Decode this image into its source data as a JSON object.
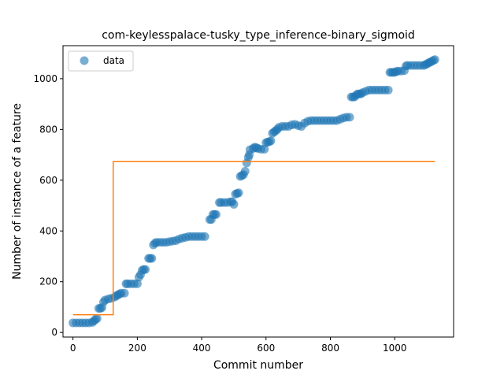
{
  "chart_data": {
    "type": "scatter",
    "title": "com-keylesspalace-tusky_type_inference-binary_sigmoid",
    "xlabel": "Commit number",
    "ylabel": "Number of instance of a feature",
    "xlim": [
      -31,
      1183
    ],
    "ylim": [
      -18,
      1130
    ],
    "xticks": [
      0,
      200,
      400,
      600,
      800,
      1000
    ],
    "yticks": [
      0,
      200,
      400,
      600,
      800,
      1000
    ],
    "legend": {
      "placement": "top-left",
      "entries": [
        "data"
      ]
    },
    "colors": {
      "data": "#1f77b4",
      "fit": "#ff7f0e"
    },
    "series": [
      {
        "name": "data",
        "style": "markers",
        "points": [
          [
            0,
            38
          ],
          [
            10,
            38
          ],
          [
            20,
            38
          ],
          [
            30,
            38
          ],
          [
            40,
            38
          ],
          [
            50,
            38
          ],
          [
            60,
            40
          ],
          [
            65,
            45
          ],
          [
            70,
            52
          ],
          [
            75,
            55
          ],
          [
            80,
            95
          ],
          [
            85,
            95
          ],
          [
            90,
            98
          ],
          [
            95,
            120
          ],
          [
            100,
            128
          ],
          [
            110,
            132
          ],
          [
            120,
            135
          ],
          [
            130,
            140
          ],
          [
            135,
            145
          ],
          [
            140,
            148
          ],
          [
            145,
            152
          ],
          [
            150,
            155
          ],
          [
            160,
            155
          ],
          [
            165,
            192
          ],
          [
            170,
            192
          ],
          [
            180,
            192
          ],
          [
            190,
            192
          ],
          [
            200,
            192
          ],
          [
            205,
            218
          ],
          [
            210,
            228
          ],
          [
            215,
            245
          ],
          [
            220,
            248
          ],
          [
            225,
            248
          ],
          [
            235,
            292
          ],
          [
            240,
            292
          ],
          [
            245,
            292
          ],
          [
            250,
            345
          ],
          [
            255,
            352
          ],
          [
            260,
            355
          ],
          [
            270,
            355
          ],
          [
            280,
            355
          ],
          [
            290,
            355
          ],
          [
            300,
            358
          ],
          [
            310,
            360
          ],
          [
            320,
            362
          ],
          [
            330,
            368
          ],
          [
            340,
            372
          ],
          [
            350,
            375
          ],
          [
            360,
            378
          ],
          [
            370,
            378
          ],
          [
            380,
            378
          ],
          [
            390,
            378
          ],
          [
            400,
            378
          ],
          [
            410,
            378
          ],
          [
            425,
            445
          ],
          [
            430,
            445
          ],
          [
            435,
            465
          ],
          [
            440,
            465
          ],
          [
            445,
            465
          ],
          [
            455,
            512
          ],
          [
            460,
            512
          ],
          [
            470,
            512
          ],
          [
            480,
            512
          ],
          [
            490,
            515
          ],
          [
            495,
            515
          ],
          [
            500,
            505
          ],
          [
            505,
            545
          ],
          [
            510,
            548
          ],
          [
            515,
            550
          ],
          [
            520,
            615
          ],
          [
            525,
            618
          ],
          [
            530,
            622
          ],
          [
            535,
            635
          ],
          [
            540,
            668
          ],
          [
            545,
            690
          ],
          [
            548,
            700
          ],
          [
            550,
            720
          ],
          [
            560,
            725
          ],
          [
            565,
            730
          ],
          [
            570,
            728
          ],
          [
            575,
            725
          ],
          [
            585,
            722
          ],
          [
            595,
            722
          ],
          [
            600,
            748
          ],
          [
            605,
            750
          ],
          [
            610,
            752
          ],
          [
            615,
            755
          ],
          [
            620,
            785
          ],
          [
            625,
            790
          ],
          [
            630,
            795
          ],
          [
            635,
            800
          ],
          [
            640,
            808
          ],
          [
            650,
            812
          ],
          [
            660,
            812
          ],
          [
            670,
            812
          ],
          [
            680,
            818
          ],
          [
            690,
            820
          ],
          [
            700,
            815
          ],
          [
            710,
            812
          ],
          [
            720,
            825
          ],
          [
            730,
            832
          ],
          [
            740,
            835
          ],
          [
            750,
            835
          ],
          [
            760,
            835
          ],
          [
            770,
            835
          ],
          [
            780,
            835
          ],
          [
            790,
            835
          ],
          [
            800,
            835
          ],
          [
            810,
            835
          ],
          [
            820,
            835
          ],
          [
            830,
            840
          ],
          [
            840,
            845
          ],
          [
            850,
            848
          ],
          [
            860,
            848
          ],
          [
            865,
            928
          ],
          [
            870,
            928
          ],
          [
            875,
            928
          ],
          [
            880,
            935
          ],
          [
            885,
            940
          ],
          [
            890,
            940
          ],
          [
            895,
            940
          ],
          [
            900,
            945
          ],
          [
            910,
            950
          ],
          [
            920,
            955
          ],
          [
            930,
            955
          ],
          [
            940,
            955
          ],
          [
            950,
            955
          ],
          [
            960,
            955
          ],
          [
            970,
            955
          ],
          [
            980,
            955
          ],
          [
            985,
            1025
          ],
          [
            990,
            1025
          ],
          [
            995,
            1025
          ],
          [
            1000,
            1025
          ],
          [
            1005,
            1028
          ],
          [
            1010,
            1030
          ],
          [
            1020,
            1030
          ],
          [
            1030,
            1032
          ],
          [
            1035,
            1050
          ],
          [
            1040,
            1052
          ],
          [
            1050,
            1052
          ],
          [
            1060,
            1052
          ],
          [
            1070,
            1052
          ],
          [
            1080,
            1052
          ],
          [
            1090,
            1052
          ],
          [
            1095,
            1055
          ],
          [
            1100,
            1058
          ],
          [
            1105,
            1062
          ],
          [
            1110,
            1065
          ],
          [
            1115,
            1068
          ],
          [
            1120,
            1072
          ],
          [
            1125,
            1075
          ]
        ]
      },
      {
        "name": "",
        "style": "step-line",
        "points": [
          [
            0,
            70
          ],
          [
            125,
            70
          ],
          [
            125,
            673
          ],
          [
            1125,
            673
          ]
        ]
      }
    ]
  }
}
